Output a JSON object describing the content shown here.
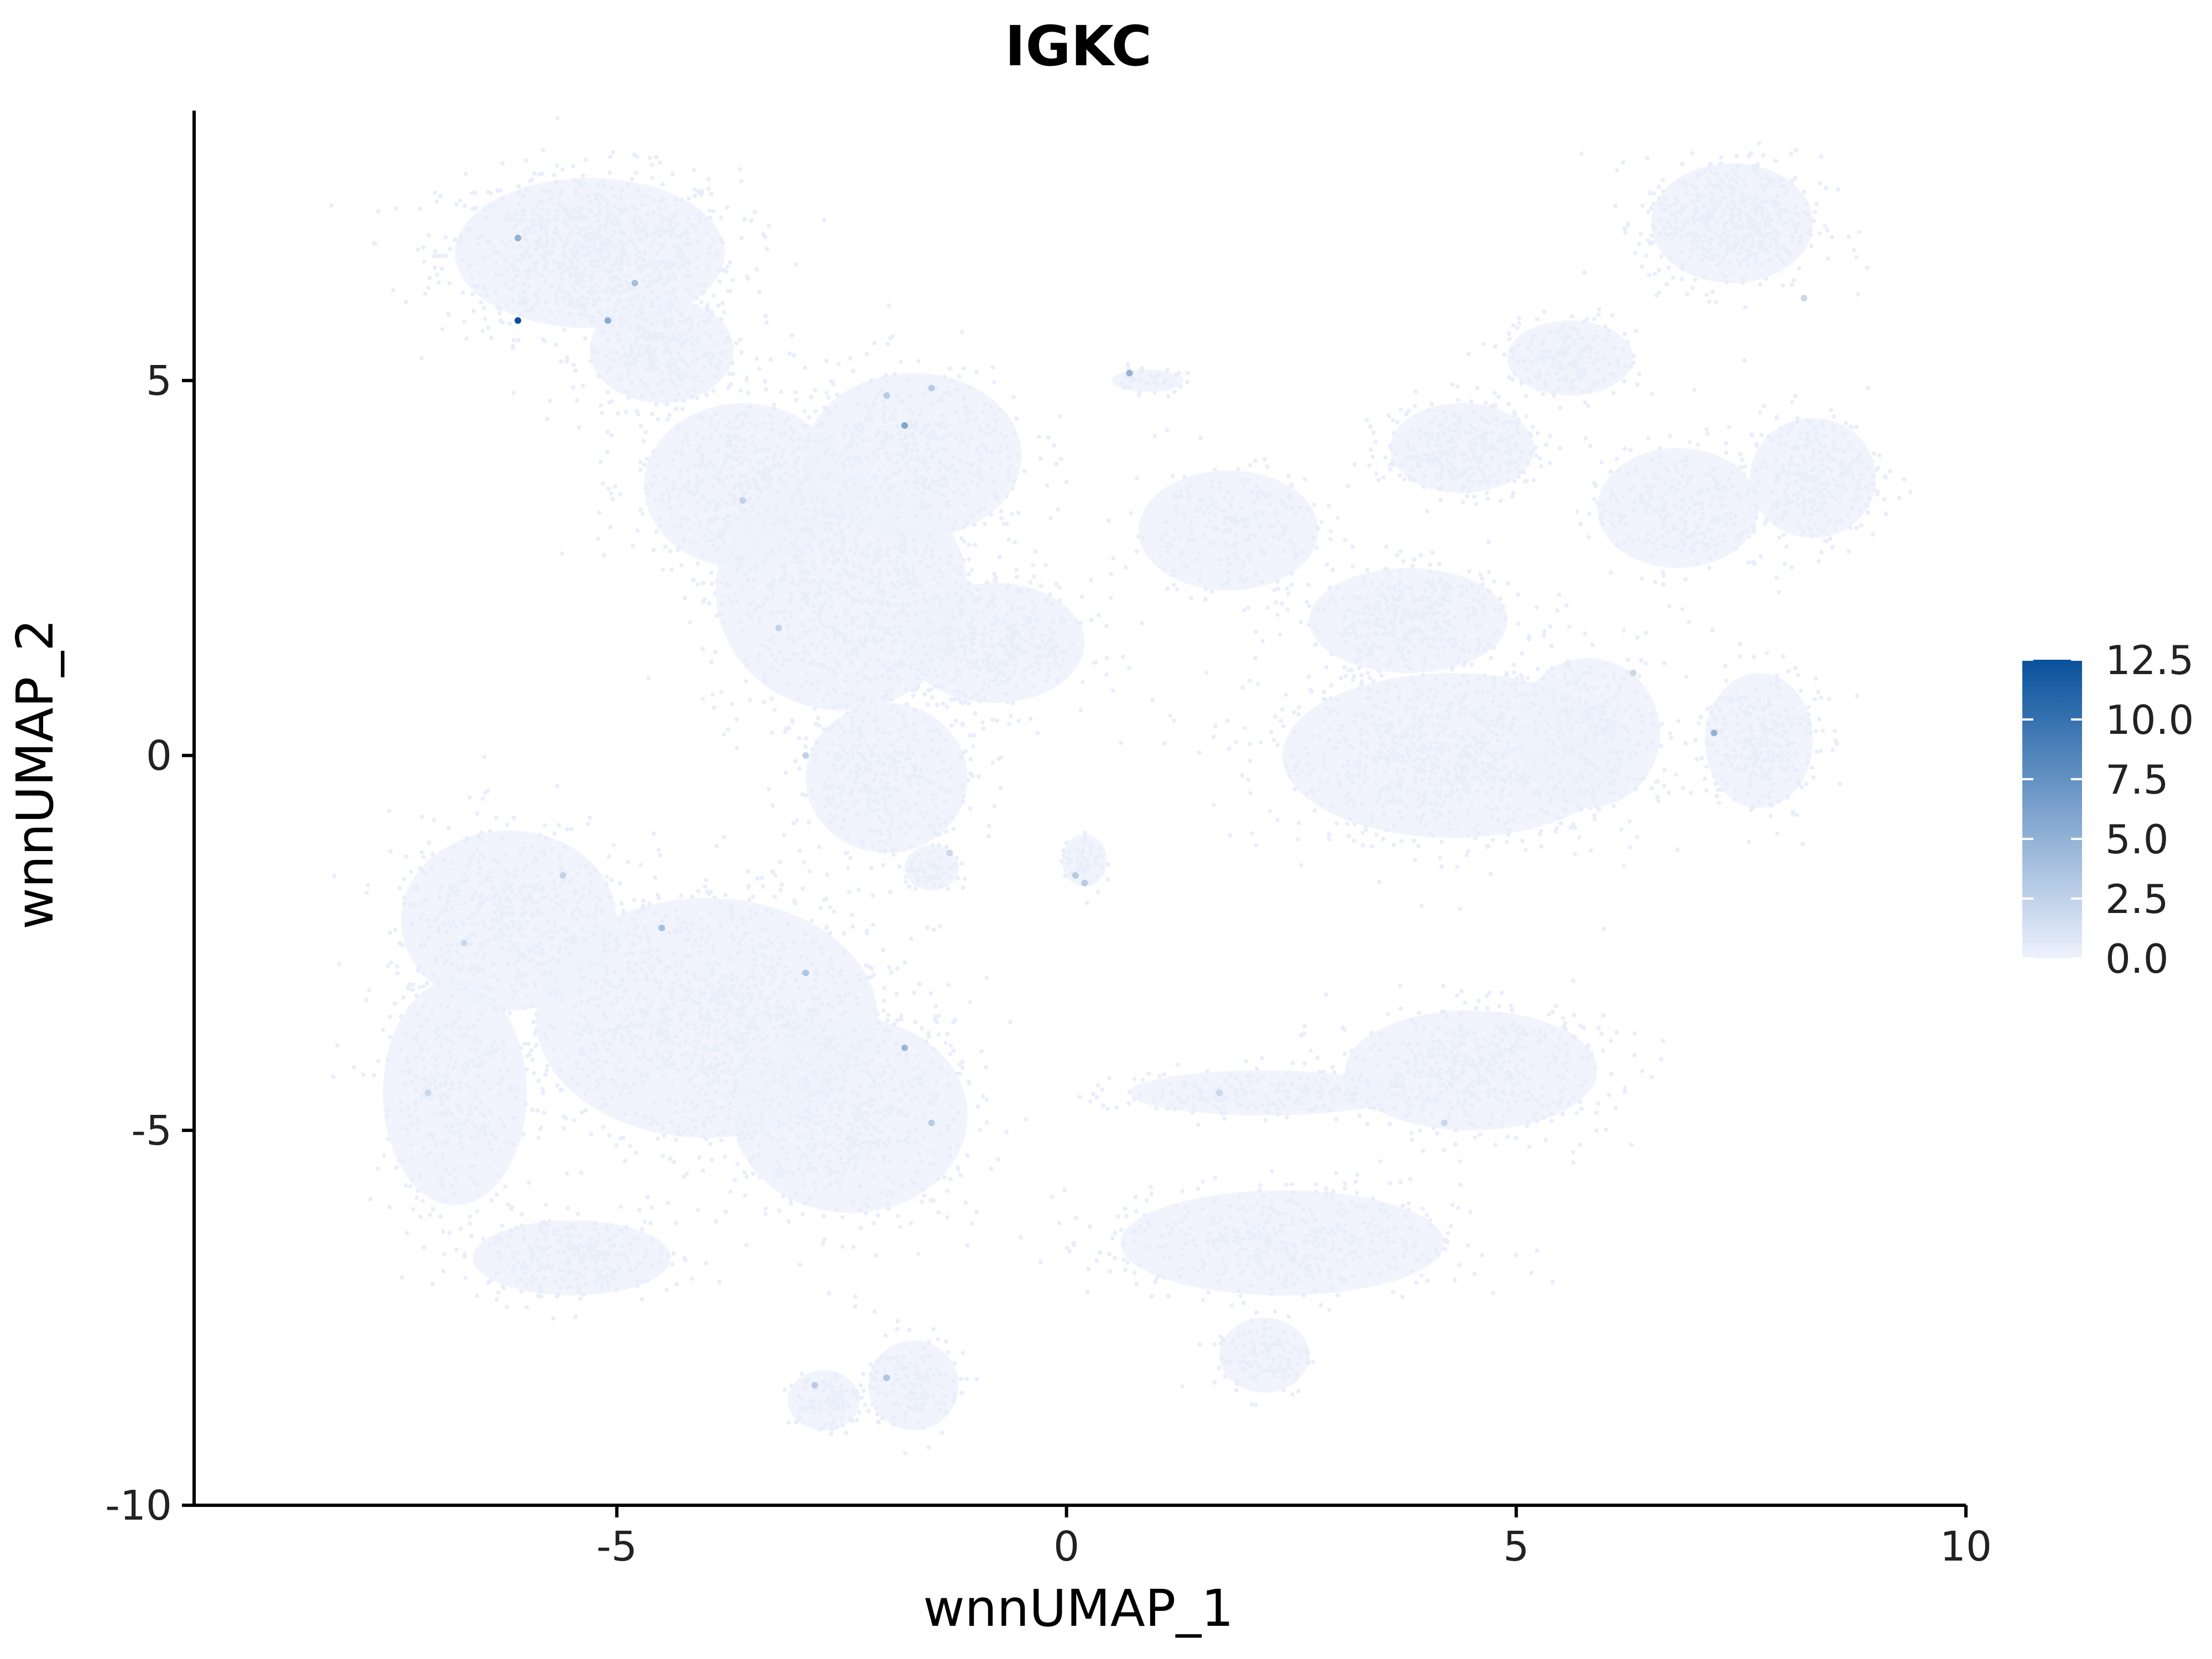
{
  "chart_data": {
    "type": "scatter",
    "title": "IGKC",
    "xlabel": "wnnUMAP_1",
    "ylabel": "wnnUMAP_2",
    "xlim": [
      -9.7,
      10
    ],
    "ylim": [
      -10,
      8.6
    ],
    "x_ticks": [
      -5,
      0,
      5,
      10
    ],
    "x_tick_labels": [
      "-5",
      "0",
      "5",
      "10"
    ],
    "y_ticks": [
      -10,
      -5,
      0,
      5
    ],
    "y_tick_labels": [
      "-10",
      "-5",
      "0",
      "5"
    ],
    "grid": false,
    "legend_position": "right",
    "colorbar": {
      "min": 0,
      "max": 12.5,
      "ticks": [
        0,
        2.5,
        5,
        7.5,
        10,
        12.5
      ],
      "tick_labels": [
        "0.0",
        "2.5",
        "5.0",
        "7.5",
        "10.0",
        "12.5"
      ],
      "low_color": "#eef2fd",
      "high_color": "#08519c"
    },
    "cell_clusters": [
      {
        "cx": -5.3,
        "cy": 6.7,
        "rx": 1.5,
        "ry": 1.0,
        "n": 900
      },
      {
        "cx": -4.5,
        "cy": 5.4,
        "rx": 0.8,
        "ry": 0.7,
        "n": 300
      },
      {
        "cx": -3.6,
        "cy": 3.6,
        "rx": 1.1,
        "ry": 1.1,
        "n": 500
      },
      {
        "cx": -2.5,
        "cy": 2.2,
        "rx": 1.4,
        "ry": 1.6,
        "n": 800
      },
      {
        "cx": -1.7,
        "cy": 4.0,
        "rx": 1.2,
        "ry": 1.1,
        "n": 500
      },
      {
        "cx": -0.8,
        "cy": 1.5,
        "rx": 1.0,
        "ry": 0.8,
        "n": 400
      },
      {
        "cx": -2.0,
        "cy": -0.3,
        "rx": 0.9,
        "ry": 1.0,
        "n": 400
      },
      {
        "cx": -1.5,
        "cy": -1.5,
        "rx": 0.3,
        "ry": 0.3,
        "n": 60
      },
      {
        "cx": 0.2,
        "cy": -1.4,
        "rx": 0.25,
        "ry": 0.35,
        "n": 50
      },
      {
        "cx": 1.8,
        "cy": 3.0,
        "rx": 1.0,
        "ry": 0.8,
        "n": 250
      },
      {
        "cx": 0.9,
        "cy": 5.0,
        "rx": 0.4,
        "ry": 0.15,
        "n": 40
      },
      {
        "cx": 4.3,
        "cy": 0.0,
        "rx": 1.9,
        "ry": 1.1,
        "n": 900
      },
      {
        "cx": 5.8,
        "cy": 0.3,
        "rx": 0.8,
        "ry": 1.0,
        "n": 300
      },
      {
        "cx": 7.7,
        "cy": 0.2,
        "rx": 0.6,
        "ry": 0.9,
        "n": 300
      },
      {
        "cx": 3.8,
        "cy": 1.8,
        "rx": 1.1,
        "ry": 0.7,
        "n": 400
      },
      {
        "cx": 4.4,
        "cy": 4.1,
        "rx": 0.8,
        "ry": 0.6,
        "n": 300
      },
      {
        "cx": 5.6,
        "cy": 5.3,
        "rx": 0.7,
        "ry": 0.5,
        "n": 200
      },
      {
        "cx": 7.4,
        "cy": 7.1,
        "rx": 0.9,
        "ry": 0.8,
        "n": 500
      },
      {
        "cx": 8.3,
        "cy": 3.7,
        "rx": 0.7,
        "ry": 0.8,
        "n": 300
      },
      {
        "cx": 6.8,
        "cy": 3.3,
        "rx": 0.9,
        "ry": 0.8,
        "n": 300
      },
      {
        "cx": -6.2,
        "cy": -2.2,
        "rx": 1.2,
        "ry": 1.2,
        "n": 500
      },
      {
        "cx": -4.0,
        "cy": -3.5,
        "rx": 1.9,
        "ry": 1.6,
        "n": 1200
      },
      {
        "cx": -2.4,
        "cy": -4.8,
        "rx": 1.3,
        "ry": 1.3,
        "n": 600
      },
      {
        "cx": -6.8,
        "cy": -4.5,
        "rx": 0.8,
        "ry": 1.5,
        "n": 350
      },
      {
        "cx": -5.5,
        "cy": -6.7,
        "rx": 1.1,
        "ry": 0.5,
        "n": 300
      },
      {
        "cx": -2.7,
        "cy": -8.6,
        "rx": 0.4,
        "ry": 0.4,
        "n": 100
      },
      {
        "cx": -1.7,
        "cy": -8.4,
        "rx": 0.5,
        "ry": 0.6,
        "n": 150
      },
      {
        "cx": 4.5,
        "cy": -4.2,
        "rx": 1.4,
        "ry": 0.8,
        "n": 500
      },
      {
        "cx": 2.2,
        "cy": -4.5,
        "rx": 1.5,
        "ry": 0.3,
        "n": 200
      },
      {
        "cx": 2.4,
        "cy": -6.5,
        "rx": 1.8,
        "ry": 0.7,
        "n": 500
      },
      {
        "cx": 2.2,
        "cy": -8.0,
        "rx": 0.5,
        "ry": 0.5,
        "n": 120
      }
    ],
    "expressing_cells": [
      {
        "x": -6.1,
        "y": 5.8,
        "v": 12.5
      },
      {
        "x": -6.1,
        "y": 6.9,
        "v": 5.0
      },
      {
        "x": -5.1,
        "y": 5.8,
        "v": 5.5
      },
      {
        "x": -4.8,
        "y": 6.3,
        "v": 4.0
      },
      {
        "x": -1.8,
        "y": 4.4,
        "v": 6.0
      },
      {
        "x": -2.0,
        "y": 4.8,
        "v": 3.0
      },
      {
        "x": -1.5,
        "y": 4.9,
        "v": 3.0
      },
      {
        "x": 0.7,
        "y": 5.1,
        "v": 5.0
      },
      {
        "x": -3.6,
        "y": 3.4,
        "v": 2.5
      },
      {
        "x": -3.2,
        "y": 1.7,
        "v": 2.5
      },
      {
        "x": -2.9,
        "y": 0.0,
        "v": 2.5
      },
      {
        "x": 7.2,
        "y": 0.3,
        "v": 5.0
      },
      {
        "x": 6.3,
        "y": 1.1,
        "v": 2.0
      },
      {
        "x": 0.1,
        "y": -1.6,
        "v": 3.0
      },
      {
        "x": 0.2,
        "y": -1.7,
        "v": 3.0
      },
      {
        "x": -1.3,
        "y": -1.3,
        "v": 2.0
      },
      {
        "x": -4.5,
        "y": -2.3,
        "v": 4.0
      },
      {
        "x": -5.6,
        "y": -1.6,
        "v": 2.5
      },
      {
        "x": -2.9,
        "y": -2.9,
        "v": 3.5
      },
      {
        "x": -1.8,
        "y": -3.9,
        "v": 4.5
      },
      {
        "x": -1.5,
        "y": -4.9,
        "v": 3.0
      },
      {
        "x": -2.8,
        "y": -8.4,
        "v": 3.0
      },
      {
        "x": -2.0,
        "y": -8.3,
        "v": 3.5
      },
      {
        "x": 1.7,
        "y": -4.5,
        "v": 2.0
      },
      {
        "x": 4.2,
        "y": -4.9,
        "v": 2.0
      },
      {
        "x": -7.1,
        "y": -4.5,
        "v": 2.0
      },
      {
        "x": -6.7,
        "y": -2.5,
        "v": 2.0
      },
      {
        "x": 8.2,
        "y": 6.1,
        "v": 2.0
      }
    ]
  }
}
